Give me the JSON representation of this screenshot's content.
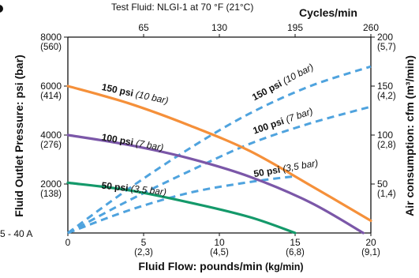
{
  "chart_data": {
    "type": "line",
    "top_note": "Test Fluid: NLGI-1 at 70 °F (21°C)",
    "corner_label": "5 - 40 A",
    "x_axis": {
      "label_bold": "Fluid Flow: pounds/min",
      "label_unit": " (kg/min)",
      "range": [
        0,
        20
      ],
      "ticks": [
        {
          "value": 0,
          "label": "0",
          "sub": ""
        },
        {
          "value": 5,
          "label": "5",
          "sub": "(2,3)"
        },
        {
          "value": 10,
          "label": "10",
          "sub": "(4,5)"
        },
        {
          "value": 15,
          "label": "15",
          "sub": "(6,8)"
        },
        {
          "value": 20,
          "label": "20",
          "sub": "(9,1)"
        }
      ]
    },
    "top_axis": {
      "label": "Cycles/min",
      "range": [
        0,
        260
      ],
      "ticks": [
        {
          "value": 65,
          "label": "65"
        },
        {
          "value": 130,
          "label": "130"
        },
        {
          "value": 195,
          "label": "195"
        },
        {
          "value": 260,
          "label": "260"
        }
      ]
    },
    "y_left": {
      "label": "Fluid Outlet Pressure: psi (bar)",
      "range": [
        0,
        8000
      ],
      "ticks": [
        {
          "value": 2000,
          "label": "2000",
          "sub": "(138)"
        },
        {
          "value": 4000,
          "label": "4000",
          "sub": "(276)"
        },
        {
          "value": 6000,
          "label": "6000",
          "sub": "(414)"
        },
        {
          "value": 8000,
          "label": "8000",
          "sub": "(560)"
        }
      ]
    },
    "y_right": {
      "label": "Air consumption: cfm (m³/min)",
      "range": [
        0,
        200
      ],
      "ticks": [
        {
          "value": 50,
          "label": "50",
          "sub": "(1,4)"
        },
        {
          "value": 100,
          "label": "100",
          "sub": "(2,8)"
        },
        {
          "value": 150,
          "label": "150",
          "sub": "(4,2)"
        },
        {
          "value": 200,
          "label": "200",
          "sub": "(5,7)"
        }
      ]
    },
    "pressure_series": [
      {
        "bold": "150 psi",
        "unit": " (10 bar)",
        "color": "#f5903a",
        "x": [
          0,
          4,
          8,
          12,
          16,
          20
        ],
        "y": [
          6000,
          5300,
          4400,
          3350,
          1950,
          500
        ]
      },
      {
        "bold": "100 psi",
        "unit": " (7 bar)",
        "color": "#7b57a8",
        "x": [
          0,
          4,
          8,
          12,
          16,
          19.5
        ],
        "y": [
          4000,
          3600,
          3050,
          2300,
          1250,
          0
        ]
      },
      {
        "bold": "50 psi",
        "unit": " (3,5 bar)",
        "color": "#14996a",
        "x": [
          0,
          4,
          8,
          12,
          15
        ],
        "y": [
          2050,
          1750,
          1250,
          650,
          0
        ]
      }
    ],
    "air_series": [
      {
        "bold": "150 psi",
        "unit": " (10 bar)",
        "color": "#4fa3de",
        "x": [
          0,
          4,
          8,
          12,
          16,
          20
        ],
        "y": [
          0,
          45,
          86,
          122,
          150,
          170
        ]
      },
      {
        "bold": "100 psi",
        "unit": " (7 bar)",
        "color": "#4fa3de",
        "x": [
          0,
          4,
          8,
          12,
          16,
          20
        ],
        "y": [
          0,
          33,
          63,
          91,
          112,
          129
        ]
      },
      {
        "bold": "50 psi",
        "unit": " (3,5 bar)",
        "color": "#4fa3de",
        "x": [
          0,
          4,
          8,
          12,
          15
        ],
        "y": [
          0,
          23,
          41,
          52,
          58
        ]
      }
    ],
    "grid": false
  }
}
